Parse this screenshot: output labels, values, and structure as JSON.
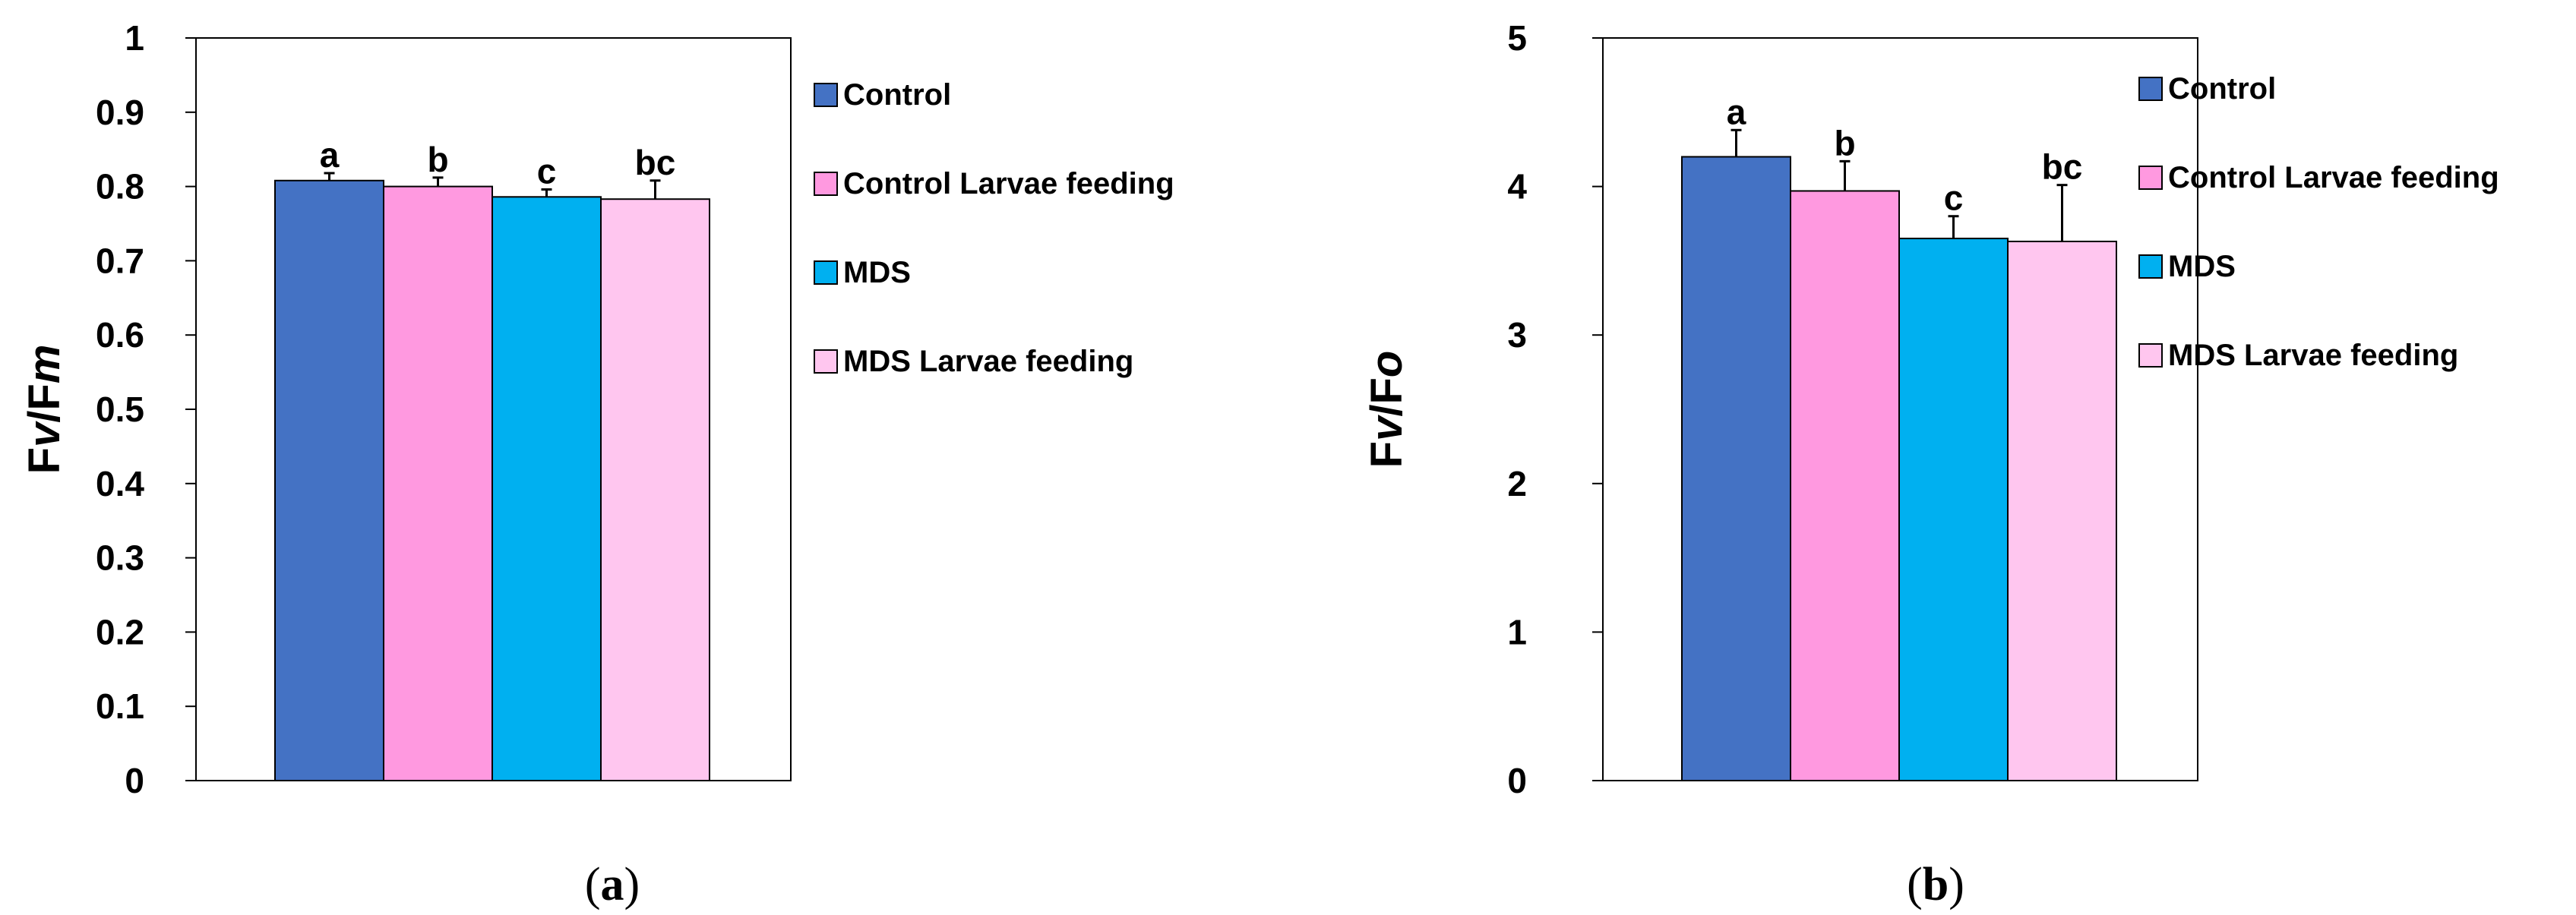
{
  "chart_data": [
    {
      "type": "bar",
      "panel_label": "(a)",
      "ylabel": "Fv/Fm",
      "ylabel_parts": [
        "F",
        "v",
        "/F",
        "m"
      ],
      "ylim": [
        0,
        1
      ],
      "yticks": [
        0,
        0.1,
        0.2,
        0.3,
        0.4,
        0.5,
        0.6,
        0.7,
        0.8,
        0.9,
        1
      ],
      "ytick_labels": [
        "0",
        "0.1",
        "0.2",
        "0.3",
        "0.4",
        "0.5",
        "0.6",
        "0.7",
        "0.8",
        "0.9",
        "1"
      ],
      "legend_position": "right",
      "series": [
        {
          "name": "Control",
          "value": 0.808,
          "error": 0.01,
          "letter": "a",
          "color": "#4472C4"
        },
        {
          "name": "Control Larvae feeding",
          "value": 0.8,
          "error": 0.012,
          "letter": "b",
          "color": "#FF99E0"
        },
        {
          "name": "MDS",
          "value": 0.786,
          "error": 0.01,
          "letter": "c",
          "color": "#00B0F0"
        },
        {
          "name": "MDS Larvae feeding",
          "value": 0.783,
          "error": 0.025,
          "letter": "bc",
          "color": "#FFC6EF"
        }
      ]
    },
    {
      "type": "bar",
      "panel_label": "(b)",
      "ylabel": "Fv/Fo",
      "ylabel_parts": [
        "F",
        "v",
        "/F",
        "o"
      ],
      "ylim": [
        0,
        5
      ],
      "yticks": [
        0,
        1,
        2,
        3,
        4,
        5
      ],
      "ytick_labels": [
        "0",
        "1",
        "2",
        "3",
        "4",
        "5"
      ],
      "legend_position": "right",
      "series": [
        {
          "name": "Control",
          "value": 4.2,
          "error": 0.18,
          "letter": "a",
          "color": "#4472C4"
        },
        {
          "name": "Control Larvae feeding",
          "value": 3.97,
          "error": 0.2,
          "letter": "b",
          "color": "#FF99E0"
        },
        {
          "name": "MDS",
          "value": 3.65,
          "error": 0.15,
          "letter": "c",
          "color": "#00B0F0"
        },
        {
          "name": "MDS Larvae feeding",
          "value": 3.63,
          "error": 0.38,
          "letter": "bc",
          "color": "#FFC6EF"
        }
      ]
    }
  ]
}
